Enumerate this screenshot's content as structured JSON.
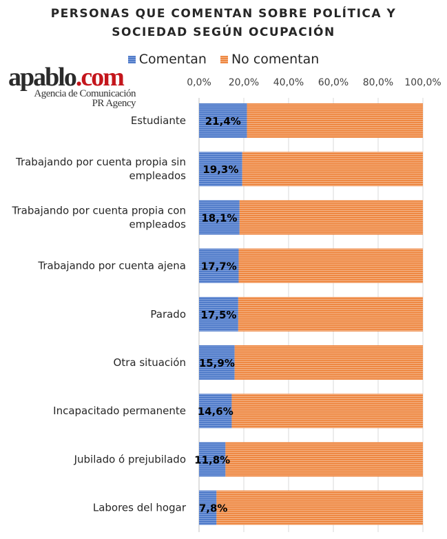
{
  "logo": {
    "text_main": "apablo",
    "text_dot": ".com",
    "line1": "Agencia de Comunicación",
    "line2": "PR Agency"
  },
  "colors": {
    "comentan": "#4472C4",
    "no_comentan": "#ED7D31"
  },
  "chart_data": {
    "type": "bar",
    "orientation": "horizontal-stacked-100",
    "title_lines": [
      "PERSONAS QUE COMENTAN SOBRE POLÍTICA Y",
      "SOCIEDAD SEGÚN OCUPACIÓN"
    ],
    "legend": [
      "Comentan",
      "No comentan"
    ],
    "legend_placement": "top",
    "categories": [
      "Estudiante",
      "Trabajando por cuenta propia sin empleados",
      "Trabajando por cuenta propia con empleados",
      "Trabajando por cuenta ajena",
      "Parado",
      "Otra situación",
      "Incapacitado permanente",
      "Jubilado ó prejubilado",
      "Labores del hogar"
    ],
    "category_lines": [
      [
        "Estudiante"
      ],
      [
        "Trabajando por cuenta propia sin",
        "empleados"
      ],
      [
        "Trabajando por cuenta propia con",
        "empleados"
      ],
      [
        "Trabajando por cuenta ajena"
      ],
      [
        "Parado"
      ],
      [
        "Otra situación"
      ],
      [
        "Incapacitado permanente"
      ],
      [
        "Jubilado ó prejubilado"
      ],
      [
        "Labores del hogar"
      ]
    ],
    "series": [
      {
        "name": "Comentan",
        "values": [
          21.4,
          19.3,
          18.1,
          17.7,
          17.5,
          15.9,
          14.6,
          11.8,
          7.8
        ]
      },
      {
        "name": "No comentan",
        "values": [
          78.6,
          80.7,
          81.9,
          82.3,
          82.5,
          84.1,
          85.4,
          88.2,
          92.2
        ]
      }
    ],
    "data_labels": [
      "21,4%",
      "19,3%",
      "18,1%",
      "17,7%",
      "17,5%",
      "15,9%",
      "14,6%",
      "11,8%",
      "7,8%"
    ],
    "xlim": [
      0,
      100
    ],
    "x_ticks": [
      "0,0%",
      "20,0%",
      "40,0%",
      "60,0%",
      "80,0%",
      "100,0%"
    ],
    "x_axis_position": "top",
    "grid": true
  }
}
